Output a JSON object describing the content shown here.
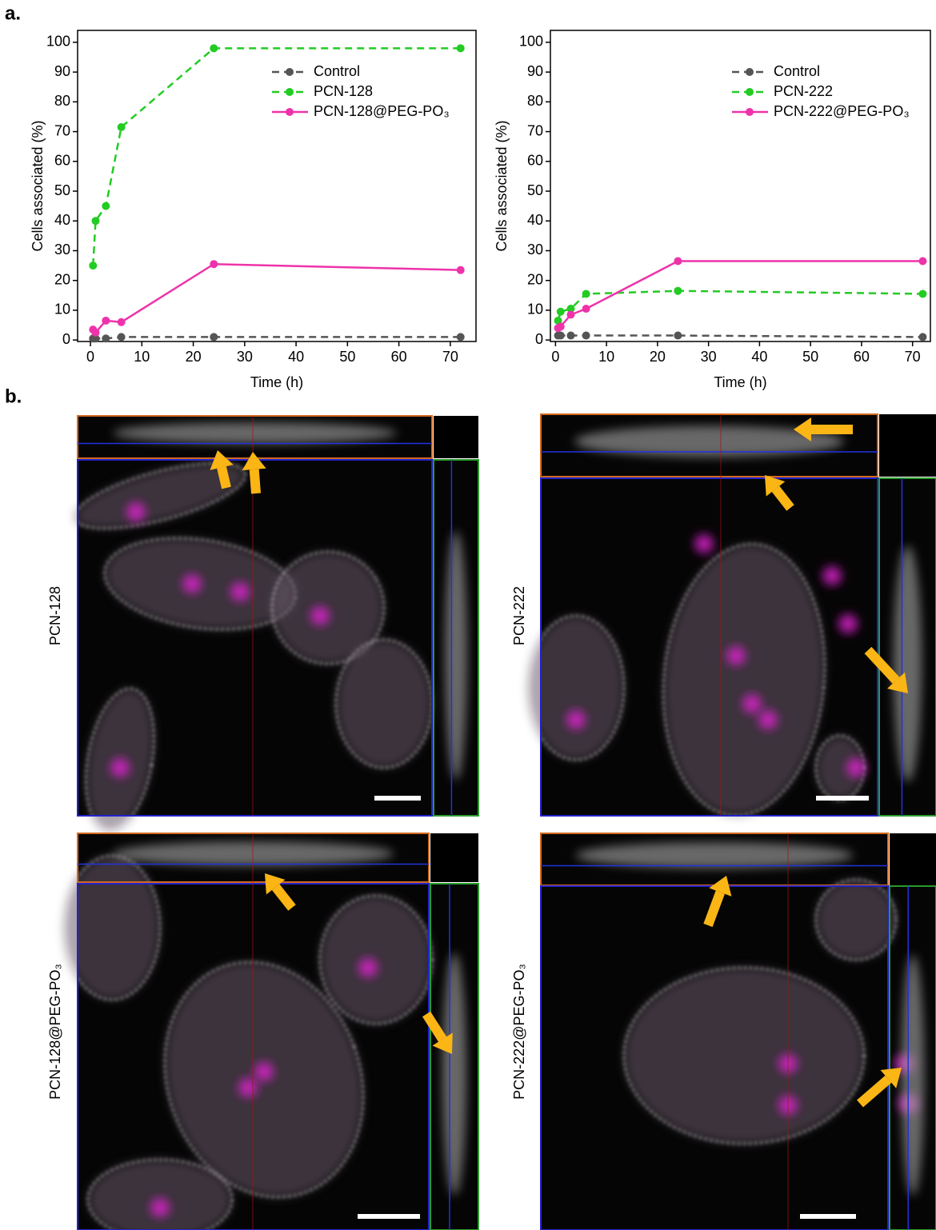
{
  "panel_labels": [
    "a.",
    "b."
  ],
  "chart_data": [
    {
      "type": "line",
      "ylabel": "Cells associated (%)",
      "xlabel": "Time (h)",
      "x": [
        0.5,
        1,
        3,
        6,
        24,
        72
      ],
      "series": [
        {
          "name": "Control",
          "color": "#555555",
          "linestyle": "dashed",
          "values": [
            0.5,
            0.5,
            0.5,
            1,
            1,
            1
          ]
        },
        {
          "name": "PCN-128",
          "color": "#22cc22",
          "linestyle": "dashed",
          "values": [
            25,
            40,
            45,
            71.5,
            98,
            98
          ]
        },
        {
          "name": "PCN-128@PEG-PO₃",
          "color": "#ee33aa",
          "linestyle": "solid",
          "values": [
            3.5,
            2.5,
            6.5,
            6,
            25.5,
            23.5
          ]
        }
      ],
      "xlim": [
        -2.5,
        75
      ],
      "xticks": [
        0,
        10,
        20,
        30,
        40,
        50,
        60,
        70
      ],
      "ylim": [
        -0.5,
        104
      ],
      "yticks": [
        0,
        10,
        20,
        30,
        40,
        50,
        60,
        70,
        80,
        90,
        100
      ]
    },
    {
      "type": "line",
      "ylabel": "Cells associated (%)",
      "xlabel": "Time (h)",
      "x": [
        0.5,
        1,
        3,
        6,
        24,
        72
      ],
      "series": [
        {
          "name": "Control",
          "color": "#555555",
          "linestyle": "dashed",
          "values": [
            1.5,
            1.5,
            1.5,
            1.5,
            1.5,
            1
          ]
        },
        {
          "name": "PCN-222",
          "color": "#22cc22",
          "linestyle": "dashed",
          "values": [
            6.5,
            9.5,
            10.5,
            15.5,
            16.5,
            15.5
          ]
        },
        {
          "name": "PCN-222@PEG-PO₃",
          "color": "#ee33aa",
          "linestyle": "solid",
          "values": [
            4,
            4.5,
            8.5,
            10.5,
            26.5,
            26.5
          ]
        }
      ],
      "xlim": [
        -1,
        73.5
      ],
      "xticks": [
        0,
        10,
        20,
        30,
        40,
        50,
        60,
        70
      ],
      "ylim": [
        -0.5,
        104
      ],
      "yticks": [
        0,
        10,
        20,
        30,
        40,
        50,
        60,
        70,
        80,
        90,
        100
      ]
    }
  ],
  "images": [
    {
      "label": "PCN-128"
    },
    {
      "label": "PCN-222"
    },
    {
      "label": "PCN-128@PEG-PO₃"
    },
    {
      "label": "PCN-222@PEG-PO₃"
    }
  ]
}
